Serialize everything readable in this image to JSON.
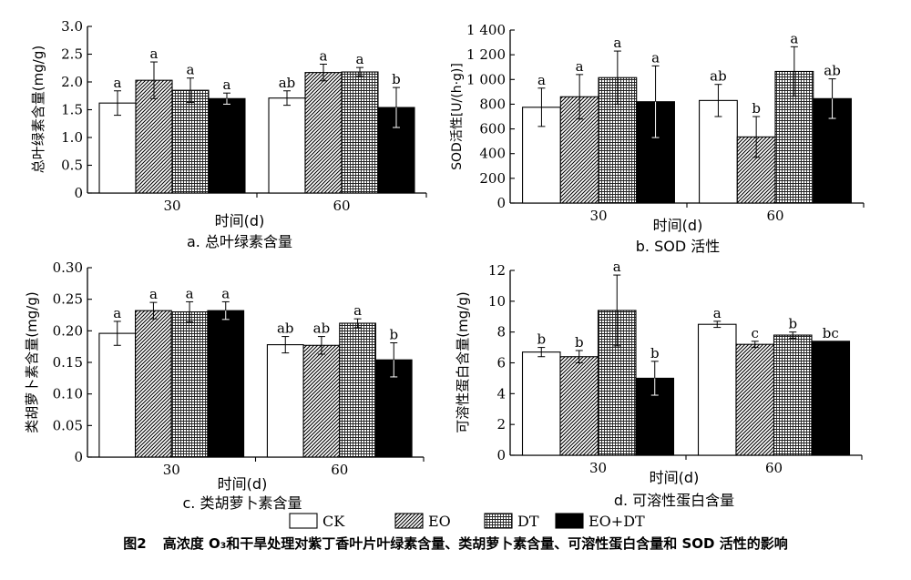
{
  "figure": {
    "caption_number": "图2",
    "caption_text": "高浓度 O₃和干旱处理对紫丁香叶片叶绿素含量、类胡萝卜素含量、可溶性蛋白含量和 SOD 活性的影响"
  },
  "legend": [
    {
      "name": "CK",
      "pattern": "white"
    },
    {
      "name": "EO",
      "pattern": "diagonal"
    },
    {
      "name": "DT",
      "pattern": "grid"
    },
    {
      "name": "EO+DT",
      "pattern": "black"
    }
  ],
  "chart_data": [
    {
      "type": "bar",
      "subtitle": "a. 总叶绿素含量",
      "xlabel": "时间(d)",
      "ylabel": "总叶绿素含量(mg/g)",
      "categories": [
        "30",
        "60"
      ],
      "ylim": [
        0,
        3.0
      ],
      "yticks": [
        0,
        0.5,
        1.0,
        1.5,
        2.0,
        2.5,
        3.0
      ],
      "ytick_labels": [
        "0",
        "0.5",
        "1.0",
        "1.5",
        "2.0",
        "2.5",
        "3.0"
      ],
      "series": [
        {
          "name": "CK",
          "values": [
            1.62,
            1.71
          ],
          "errors": [
            0.22,
            0.13
          ],
          "letters": [
            "a",
            "ab"
          ]
        },
        {
          "name": "EO",
          "values": [
            2.03,
            2.17
          ],
          "errors": [
            0.33,
            0.15
          ],
          "letters": [
            "a",
            "a"
          ]
        },
        {
          "name": "DT",
          "values": [
            1.85,
            2.18
          ],
          "errors": [
            0.22,
            0.08
          ],
          "letters": [
            "a",
            "a"
          ]
        },
        {
          "name": "EO+DT",
          "values": [
            1.7,
            1.54
          ],
          "errors": [
            0.1,
            0.36
          ],
          "letters": [
            "a",
            "b"
          ]
        }
      ],
      "grid": false
    },
    {
      "type": "bar",
      "subtitle": "b. SOD 活性",
      "xlabel": "时间(d)",
      "ylabel": "SOD活性[U/(h·g)]",
      "categories": [
        "30",
        "60"
      ],
      "ylim": [
        0,
        1400
      ],
      "yticks": [
        0,
        200,
        400,
        600,
        800,
        1000,
        1200,
        1400
      ],
      "ytick_labels": [
        "0",
        "200",
        "400",
        "600",
        "800",
        "1 000",
        "1 200",
        "1 400"
      ],
      "series": [
        {
          "name": "CK",
          "values": [
            775,
            830
          ],
          "errors": [
            155,
            130
          ],
          "letters": [
            "a",
            "ab"
          ]
        },
        {
          "name": "EO",
          "values": [
            860,
            535
          ],
          "errors": [
            180,
            165
          ],
          "letters": [
            "a",
            "b"
          ]
        },
        {
          "name": "DT",
          "values": [
            1015,
            1065
          ],
          "errors": [
            215,
            200
          ],
          "letters": [
            "a",
            "a"
          ]
        },
        {
          "name": "EO+DT",
          "values": [
            820,
            845
          ],
          "errors": [
            290,
            160
          ],
          "letters": [
            "a",
            "ab"
          ]
        }
      ],
      "grid": false
    },
    {
      "type": "bar",
      "subtitle": "c. 类胡萝卜素含量",
      "xlabel": "时间(d)",
      "ylabel": "类胡萝卜素含量(mg/g)",
      "categories": [
        "30",
        "60"
      ],
      "ylim": [
        0,
        0.3
      ],
      "yticks": [
        0,
        0.05,
        0.1,
        0.15,
        0.2,
        0.25,
        0.3
      ],
      "ytick_labels": [
        "0",
        "0.05",
        "0.10",
        "0.15",
        "0.20",
        "0.25",
        "0.30"
      ],
      "series": [
        {
          "name": "CK",
          "values": [
            0.196,
            0.178
          ],
          "errors": [
            0.019,
            0.013
          ],
          "letters": [
            "a",
            "ab"
          ]
        },
        {
          "name": "EO",
          "values": [
            0.232,
            0.177
          ],
          "errors": [
            0.013,
            0.014
          ],
          "letters": [
            "a",
            "ab"
          ]
        },
        {
          "name": "DT",
          "values": [
            0.23,
            0.212
          ],
          "errors": [
            0.016,
            0.007
          ],
          "letters": [
            "a",
            "a"
          ]
        },
        {
          "name": "EO+DT",
          "values": [
            0.232,
            0.154
          ],
          "errors": [
            0.014,
            0.027
          ],
          "letters": [
            "a",
            "b"
          ]
        }
      ],
      "grid": false
    },
    {
      "type": "bar",
      "subtitle": "d. 可溶性蛋白含量",
      "xlabel": "时间(d)",
      "ylabel": "可溶性蛋白含量(mg/g)",
      "categories": [
        "30",
        "60"
      ],
      "ylim": [
        0,
        12
      ],
      "yticks": [
        0,
        2,
        4,
        6,
        8,
        10,
        12
      ],
      "ytick_labels": [
        "0",
        "2",
        "4",
        "6",
        "8",
        "10",
        "12"
      ],
      "series": [
        {
          "name": "CK",
          "values": [
            6.7,
            8.5
          ],
          "errors": [
            0.3,
            0.2
          ],
          "letters": [
            "b",
            "a"
          ]
        },
        {
          "name": "EO",
          "values": [
            6.4,
            7.2
          ],
          "errors": [
            0.4,
            0.2
          ],
          "letters": [
            "b",
            "c"
          ]
        },
        {
          "name": "DT",
          "values": [
            9.4,
            7.8
          ],
          "errors": [
            2.3,
            0.2
          ],
          "letters": [
            "a",
            "b"
          ]
        },
        {
          "name": "EO+DT",
          "values": [
            5.0,
            7.4
          ],
          "errors": [
            1.1,
            0.0
          ],
          "letters": [
            "b",
            "bc"
          ]
        }
      ],
      "grid": false
    }
  ]
}
